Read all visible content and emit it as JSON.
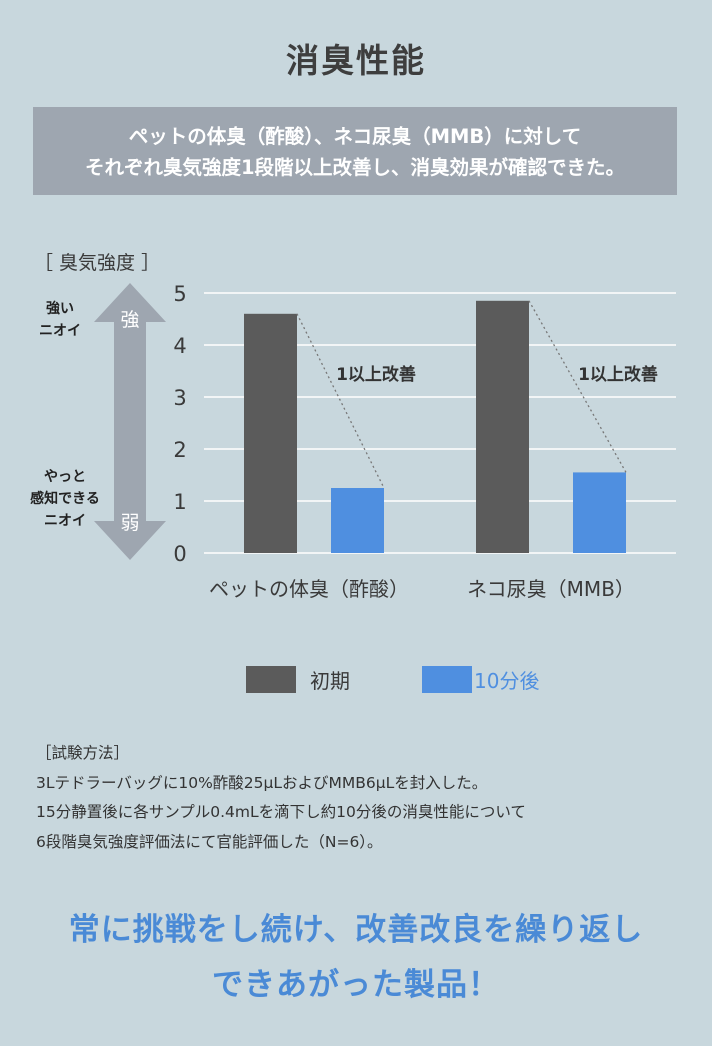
{
  "title": "消臭性能",
  "summary": {
    "line1": "ペットの体臭（酢酸）、ネコ尿臭（MMB）に対して",
    "line2": "それぞれ臭気強度1段階以上改善し、消臭効果が確認できた。"
  },
  "scale": {
    "caption": "［ 臭気強度 ］",
    "strong_label_1": "強い",
    "strong_label_2": "ニオイ",
    "weak_label_1": "やっと",
    "weak_label_2": "感知できる",
    "weak_label_3": "ニオイ",
    "arrow_top": "強",
    "arrow_bottom": "弱"
  },
  "colors": {
    "initial": "#5b5b5b",
    "after": "#4f8fe0",
    "gridline": "#ffffff",
    "annotation": "#333333"
  },
  "chart_data": {
    "type": "bar",
    "categories": [
      "ペットの体臭（酢酸）",
      "ネコ尿臭（MMB）"
    ],
    "series": [
      {
        "name": "初期",
        "values": [
          4.6,
          4.85
        ]
      },
      {
        "name": "10分後",
        "values": [
          1.25,
          1.55
        ]
      }
    ],
    "ylim": [
      0,
      5
    ],
    "yticks": [
      0,
      1,
      2,
      3,
      4,
      5
    ],
    "annotations": [
      "1以上改善",
      "1以上改善"
    ],
    "grid": true,
    "legend_position": "bottom"
  },
  "method": {
    "heading": "［試験方法］",
    "line1": "3Lテドラーバッグに10%酢酸25μLおよびMMB6μLを封入した。",
    "line2": "15分静置後に各サンプル0.4mLを滴下し約10分後の消臭性能について",
    "line3": "6段階臭気強度評価法にて官能評価した（N=6）。"
  },
  "tagline": {
    "line1": "常に挑戦をし続け、改善改良を繰り返し",
    "line2": "できあがった製品！"
  }
}
